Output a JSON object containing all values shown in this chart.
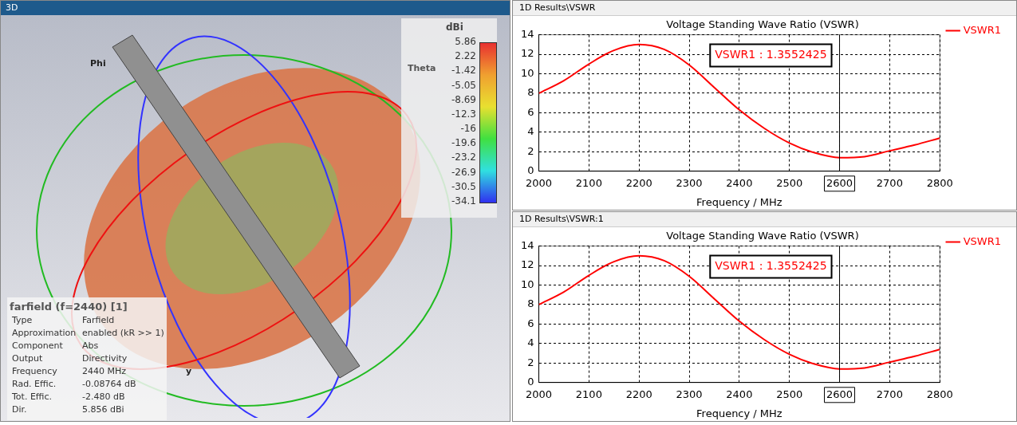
{
  "chart_data": [
    {
      "type": "other",
      "subtitle": "3D",
      "title": "farfield (f=2440) [1]",
      "annotations": [
        "Type",
        "Farfield",
        "Approximation",
        "enabled (kR >> 1)",
        "Component",
        "Abs",
        "Output",
        "Directivity",
        "Frequency",
        "2440 MHz",
        "Rad. Effic.",
        "-0.08764 dB",
        "Tot. Effic.",
        "-2.480 dB",
        "Dir.",
        "5.856 dBi",
        "Phi",
        "Theta",
        "y",
        "dBi",
        "5.86",
        "2.22",
        "-1.42",
        "-5.05",
        "-8.69",
        "-12.3",
        "-16",
        "-19.6",
        "-23.2",
        "-26.9",
        "-30.5",
        "-34.1"
      ]
    },
    {
      "type": "line",
      "subtitle": "1D Results\\VSWR",
      "title": "Voltage Standing Wave Ratio (VSWR)",
      "xlabel": "Frequency / MHz",
      "x": [
        2000,
        2050,
        2100,
        2150,
        2200,
        2250,
        2300,
        2350,
        2400,
        2450,
        2500,
        2550,
        2600,
        2650,
        2700,
        2750,
        2800
      ],
      "series": [
        {
          "name": "VSWR1",
          "color": "#ff0000",
          "values": [
            8.0,
            9.3,
            11.0,
            12.4,
            13.0,
            12.5,
            10.9,
            8.6,
            6.3,
            4.4,
            2.9,
            1.9,
            1.4,
            1.5,
            2.1,
            2.7,
            3.4
          ]
        }
      ],
      "xlim": [
        2000,
        2800
      ],
      "xticks": [
        2000,
        2100,
        2200,
        2300,
        2400,
        2500,
        2600,
        2700,
        2800
      ],
      "ylim": [
        0,
        14
      ],
      "yticks": [
        0,
        2,
        4,
        6,
        8,
        10,
        12,
        14
      ],
      "grid": true,
      "legend": "right",
      "marker": "none",
      "line_style": "solid",
      "ref_lines": [
        {
          "axis": "x",
          "value": 2600,
          "color": "#000000"
        }
      ],
      "annotations": [
        "VSWR1 : 1.3552425"
      ]
    },
    {
      "type": "line",
      "subtitle": "1D Results\\VSWR:1",
      "title": "Voltage Standing Wave Ratio (VSWR)",
      "xlabel": "Frequency / MHz",
      "x": [
        2000,
        2050,
        2100,
        2150,
        2200,
        2250,
        2300,
        2350,
        2400,
        2450,
        2500,
        2550,
        2600,
        2650,
        2700,
        2750,
        2800
      ],
      "series": [
        {
          "name": "VSWR1",
          "color": "#ff0000",
          "values": [
            8.0,
            9.3,
            11.0,
            12.4,
            13.0,
            12.5,
            10.9,
            8.6,
            6.3,
            4.4,
            2.9,
            1.9,
            1.4,
            1.5,
            2.1,
            2.7,
            3.4
          ]
        }
      ],
      "xlim": [
        2000,
        2800
      ],
      "xticks": [
        2000,
        2100,
        2200,
        2300,
        2400,
        2500,
        2600,
        2700,
        2800
      ],
      "ylim": [
        0,
        14
      ],
      "yticks": [
        0,
        2,
        4,
        6,
        8,
        10,
        12,
        14
      ],
      "grid": true,
      "legend": "right",
      "marker": "none",
      "line_style": "solid",
      "ref_lines": [
        {
          "axis": "x",
          "value": 2600,
          "color": "#000000"
        }
      ],
      "annotations": [
        "VSWR1 : 1.3552425"
      ]
    }
  ]
}
